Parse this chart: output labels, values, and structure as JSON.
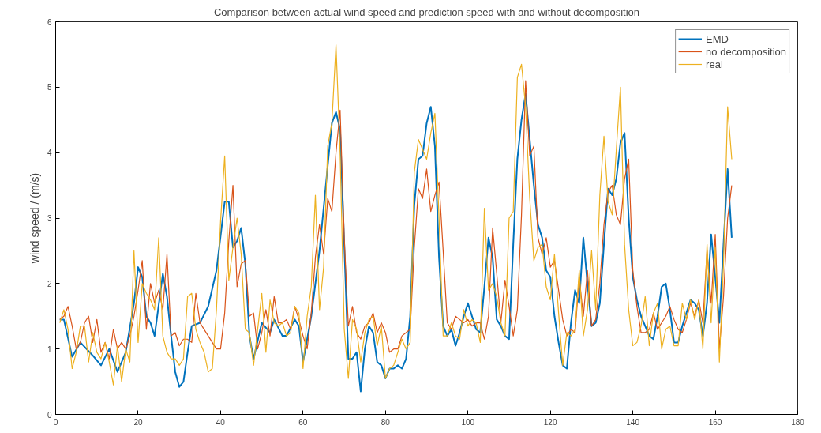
{
  "chart_data": {
    "type": "line",
    "title": "Comparison between actual wind speed and prediction speed with and without decomposition",
    "ylabel": "wind speed / (m/s)",
    "xlim": [
      0,
      180
    ],
    "xticks": [
      0,
      20,
      40,
      60,
      80,
      100,
      120,
      140,
      160,
      180
    ],
    "ylim": [
      0,
      6
    ],
    "yticks": [
      0,
      1,
      2,
      3,
      4,
      5,
      6
    ],
    "grid": false,
    "legend": "top right",
    "marker": "none",
    "line_style": "solid",
    "series": [
      {
        "name": "EMD",
        "color": "#0072bd",
        "x": [
          1,
          2,
          4,
          6,
          9,
          11,
          13,
          15,
          17,
          19,
          20,
          21,
          22,
          23,
          24,
          26,
          27,
          28,
          29,
          30,
          31,
          32,
          33,
          35,
          37,
          39,
          41,
          42,
          43,
          44,
          45,
          46,
          47,
          48,
          50,
          52,
          53,
          55,
          56,
          58,
          59,
          60,
          62,
          64,
          66,
          67,
          68,
          69,
          70,
          71,
          72,
          73,
          74,
          75,
          76,
          77,
          78,
          79,
          80,
          81,
          82,
          83,
          84,
          85,
          86,
          87,
          88,
          89,
          90,
          91,
          92,
          93,
          94,
          95,
          96,
          97,
          98,
          99,
          100,
          101,
          102,
          103,
          104,
          105,
          106,
          107,
          108,
          109,
          110,
          111,
          112,
          113,
          114,
          115,
          116,
          117,
          118,
          119,
          120,
          121,
          122,
          123,
          124,
          125,
          126,
          127,
          128,
          129,
          130,
          131,
          132,
          133,
          134,
          135,
          136,
          137,
          138,
          139,
          140,
          141,
          142,
          143,
          144,
          145,
          146,
          147,
          148,
          149,
          150,
          151,
          152,
          153,
          154,
          155,
          156,
          157,
          158,
          159,
          160,
          161,
          162,
          163,
          164
        ],
        "values": [
          1.45,
          1.45,
          0.88,
          1.1,
          0.9,
          0.75,
          1.0,
          0.65,
          0.95,
          1.7,
          2.25,
          2.1,
          1.5,
          1.4,
          1.2,
          2.15,
          1.8,
          1.2,
          0.65,
          0.42,
          0.5,
          0.95,
          1.35,
          1.4,
          1.65,
          2.2,
          3.25,
          3.25,
          2.55,
          2.65,
          2.85,
          2.3,
          1.2,
          0.85,
          1.4,
          1.25,
          1.45,
          1.2,
          1.2,
          1.45,
          1.35,
          0.8,
          1.5,
          2.5,
          3.8,
          4.45,
          4.62,
          4.35,
          2.6,
          0.85,
          0.85,
          0.95,
          0.35,
          1.0,
          1.35,
          1.25,
          0.8,
          0.75,
          0.55,
          0.7,
          0.7,
          0.75,
          0.7,
          0.85,
          1.5,
          3.2,
          3.9,
          3.95,
          4.45,
          4.7,
          4.1,
          2.4,
          1.35,
          1.2,
          1.3,
          1.05,
          1.25,
          1.5,
          1.7,
          1.5,
          1.3,
          1.25,
          1.95,
          2.7,
          2.4,
          1.45,
          1.35,
          1.2,
          1.15,
          2.6,
          3.9,
          4.5,
          4.9,
          4.2,
          3.5,
          2.9,
          2.7,
          2.2,
          2.1,
          1.5,
          1.1,
          0.75,
          0.7,
          1.4,
          1.9,
          1.7,
          2.7,
          2.0,
          1.35,
          1.4,
          1.7,
          2.6,
          3.45,
          3.35,
          3.6,
          4.15,
          4.3,
          3.0,
          2.1,
          1.75,
          1.5,
          1.35,
          1.2,
          1.15,
          1.5,
          1.95,
          2.0,
          1.6,
          1.1,
          1.1,
          1.35,
          1.55,
          1.75,
          1.7,
          1.6,
          1.2,
          1.7,
          2.75,
          2.1,
          1.4,
          2.6,
          3.75,
          2.7
        ]
      },
      {
        "name": "no decomposition",
        "color": "#d95319",
        "x": [
          1,
          2,
          3,
          4,
          5,
          6,
          7,
          8,
          9,
          10,
          11,
          12,
          13,
          14,
          15,
          16,
          17,
          18,
          19,
          20,
          21,
          22,
          23,
          24,
          25,
          26,
          27,
          28,
          29,
          30,
          31,
          32,
          33,
          34,
          35,
          36,
          37,
          38,
          39,
          40,
          41,
          42,
          43,
          44,
          45,
          46,
          47,
          48,
          49,
          50,
          51,
          52,
          53,
          54,
          55,
          56,
          57,
          58,
          59,
          60,
          61,
          62,
          63,
          64,
          65,
          66,
          67,
          68,
          69,
          70,
          71,
          72,
          73,
          74,
          75,
          76,
          77,
          78,
          79,
          80,
          81,
          82,
          83,
          84,
          85,
          86,
          87,
          88,
          89,
          90,
          91,
          92,
          93,
          94,
          95,
          96,
          97,
          98,
          99,
          100,
          101,
          102,
          103,
          104,
          105,
          106,
          107,
          108,
          109,
          110,
          111,
          112,
          113,
          114,
          115,
          116,
          117,
          118,
          119,
          120,
          121,
          122,
          123,
          124,
          125,
          126,
          127,
          128,
          129,
          130,
          131,
          132,
          133,
          134,
          135,
          136,
          137,
          138,
          139,
          140,
          141,
          142,
          143,
          144,
          145,
          146,
          147,
          148,
          149,
          150,
          151,
          152,
          153,
          154,
          155,
          156,
          157,
          158,
          159,
          160,
          161,
          162,
          163,
          164
        ],
        "values": [
          1.45,
          1.5,
          1.65,
          1.35,
          1.0,
          1.1,
          1.4,
          1.5,
          1.1,
          1.45,
          0.95,
          1.1,
          0.85,
          1.3,
          1.0,
          1.1,
          1.0,
          1.2,
          1.5,
          1.9,
          2.35,
          1.3,
          2.0,
          1.7,
          1.9,
          1.6,
          2.45,
          1.2,
          1.25,
          1.05,
          1.15,
          1.15,
          1.1,
          1.85,
          1.4,
          1.3,
          1.2,
          1.1,
          1.0,
          1.0,
          1.55,
          2.65,
          3.5,
          1.95,
          2.3,
          2.35,
          1.5,
          1.55,
          1.0,
          1.25,
          1.6,
          1.2,
          1.8,
          1.4,
          1.4,
          1.45,
          1.3,
          1.65,
          1.45,
          1.2,
          1.0,
          1.55,
          2.4,
          2.9,
          2.45,
          3.3,
          3.1,
          4.0,
          4.65,
          2.7,
          1.35,
          1.65,
          1.25,
          1.15,
          1.35,
          1.4,
          1.55,
          1.25,
          1.4,
          1.25,
          0.95,
          1.0,
          1.0,
          1.2,
          1.25,
          1.3,
          2.55,
          3.45,
          3.3,
          3.75,
          3.1,
          3.35,
          3.55,
          2.5,
          1.4,
          1.3,
          1.5,
          1.45,
          1.4,
          1.45,
          1.35,
          1.4,
          1.4,
          1.15,
          1.5,
          2.85,
          2.15,
          1.4,
          2.05,
          1.65,
          1.2,
          1.6,
          3.05,
          5.1,
          3.95,
          4.1,
          2.7,
          2.45,
          2.7,
          2.25,
          2.35,
          1.9,
          1.45,
          1.2,
          1.3,
          1.25,
          2.1,
          1.5,
          2.2,
          1.35,
          1.45,
          2.0,
          2.9,
          3.4,
          3.5,
          3.05,
          2.9,
          3.6,
          3.9,
          2.2,
          1.65,
          1.25,
          1.25,
          1.3,
          1.55,
          1.3,
          1.4,
          1.5,
          1.65,
          1.45,
          1.3,
          1.25,
          1.45,
          1.7,
          1.5,
          1.75,
          1.4,
          2.5,
          1.7,
          2.75,
          1.0,
          1.8,
          3.0,
          3.5
        ]
      },
      {
        "name": "real",
        "color": "#edb120",
        "x": [
          1,
          2,
          3,
          4,
          5,
          6,
          7,
          8,
          9,
          10,
          11,
          12,
          13,
          14,
          15,
          16,
          17,
          18,
          19,
          20,
          21,
          22,
          23,
          24,
          25,
          26,
          27,
          28,
          29,
          30,
          31,
          32,
          33,
          34,
          35,
          36,
          37,
          38,
          39,
          40,
          41,
          42,
          43,
          44,
          45,
          46,
          47,
          48,
          49,
          50,
          51,
          52,
          53,
          54,
          55,
          56,
          57,
          58,
          59,
          60,
          61,
          62,
          63,
          64,
          65,
          66,
          67,
          68,
          69,
          70,
          71,
          72,
          73,
          74,
          75,
          76,
          77,
          78,
          79,
          80,
          81,
          82,
          83,
          84,
          85,
          86,
          87,
          88,
          89,
          90,
          91,
          92,
          93,
          94,
          95,
          96,
          97,
          98,
          99,
          100,
          101,
          102,
          103,
          104,
          105,
          106,
          107,
          108,
          109,
          110,
          111,
          112,
          113,
          114,
          115,
          116,
          117,
          118,
          119,
          120,
          121,
          122,
          123,
          124,
          125,
          126,
          127,
          128,
          129,
          130,
          131,
          132,
          133,
          134,
          135,
          136,
          137,
          138,
          139,
          140,
          141,
          142,
          143,
          144,
          145,
          146,
          147,
          148,
          149,
          150,
          151,
          152,
          153,
          154,
          155,
          156,
          157,
          158,
          159,
          160,
          161,
          162,
          163,
          164
        ],
        "values": [
          1.4,
          1.6,
          1.3,
          0.7,
          0.95,
          1.35,
          1.35,
          0.8,
          1.25,
          0.95,
          0.85,
          1.1,
          0.8,
          0.45,
          1.05,
          0.5,
          1.0,
          0.8,
          2.5,
          1.1,
          2.0,
          1.85,
          1.75,
          1.6,
          2.7,
          1.2,
          0.95,
          0.85,
          0.85,
          0.75,
          0.85,
          1.8,
          1.85,
          1.3,
          1.1,
          0.95,
          0.65,
          0.7,
          1.6,
          2.95,
          3.95,
          2.05,
          2.55,
          3.0,
          2.45,
          1.3,
          1.25,
          0.75,
          1.3,
          1.85,
          0.95,
          1.75,
          1.4,
          1.35,
          1.4,
          1.2,
          1.25,
          1.65,
          1.55,
          0.7,
          1.5,
          1.95,
          3.35,
          1.6,
          2.25,
          4.1,
          4.45,
          5.65,
          4.0,
          1.3,
          0.55,
          1.45,
          1.3,
          0.8,
          1.25,
          1.45,
          1.5,
          1.05,
          1.35,
          0.55,
          0.7,
          0.75,
          0.95,
          1.15,
          1.0,
          1.1,
          3.7,
          4.2,
          4.05,
          3.9,
          4.3,
          4.6,
          3.0,
          1.2,
          1.2,
          1.4,
          1.2,
          1.15,
          1.6,
          1.35,
          1.45,
          1.4,
          1.1,
          3.15,
          1.9,
          2.0,
          1.8,
          1.4,
          1.2,
          3.0,
          3.1,
          5.15,
          5.35,
          4.7,
          3.3,
          2.35,
          2.55,
          2.6,
          1.95,
          1.75,
          2.45,
          1.55,
          0.75,
          1.25,
          1.2,
          1.3,
          2.2,
          1.2,
          1.6,
          2.5,
          1.6,
          3.35,
          4.25,
          3.25,
          3.05,
          4.05,
          5.0,
          2.6,
          1.6,
          1.05,
          1.1,
          1.35,
          1.8,
          1.05,
          1.55,
          1.7,
          1.0,
          1.3,
          1.35,
          1.05,
          1.05,
          1.7,
          1.45,
          1.75,
          1.45,
          1.75,
          1.0,
          2.6,
          1.4,
          2.55,
          0.8,
          2.3,
          4.7,
          3.9
        ]
      }
    ]
  }
}
